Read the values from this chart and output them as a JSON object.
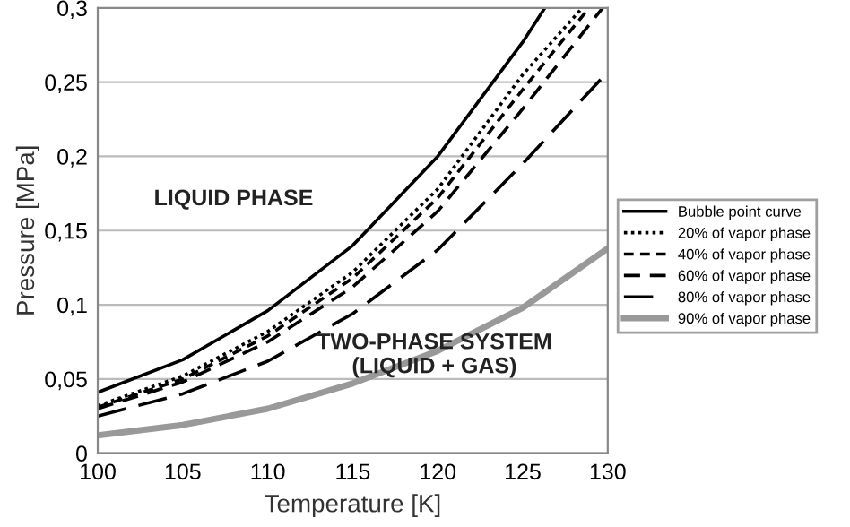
{
  "chart_data": {
    "type": "line",
    "xlabel": "Temperature [K]",
    "ylabel": "Pressure [MPa]",
    "xlim": [
      100,
      130
    ],
    "xticks": [
      100,
      105,
      110,
      115,
      120,
      125,
      130
    ],
    "ylim": [
      0,
      0.3
    ],
    "yticks": [
      0,
      {
        "value": 0.05,
        "label": "0,05"
      },
      {
        "value": 0.1,
        "label": "0,1"
      },
      {
        "value": 0.15,
        "label": "0,15"
      },
      {
        "value": 0.2,
        "label": "0,2"
      },
      {
        "value": 0.25,
        "label": "0,25"
      },
      {
        "value": 0.3,
        "label": "0,3"
      }
    ],
    "grid": "y",
    "legend": "right",
    "marker": "none",
    "annotations": [
      "LIQUID PHASE",
      "TWO-PHASE SYSTEM\n(LIQUID + GAS)"
    ],
    "series": [
      {
        "name": "Bubble point curve",
        "color": "#000000",
        "line_style": "solid",
        "x": [
          100,
          105,
          110,
          115,
          120,
          125,
          126.3
        ],
        "values": [
          0.041,
          0.063,
          0.096,
          0.14,
          0.2,
          0.277,
          0.3
        ]
      },
      {
        "name": "20% of vapor phase",
        "color": "#000000",
        "line_style": "dotted",
        "x": [
          100,
          105,
          110,
          115,
          120,
          125,
          128.5
        ],
        "values": [
          0.032,
          0.052,
          0.082,
          0.122,
          0.178,
          0.255,
          0.3
        ]
      },
      {
        "name": "40% of vapor phase",
        "color": "#000000",
        "line_style": "dashed",
        "x": [
          100,
          105,
          110,
          115,
          120,
          125,
          128.9
        ],
        "values": [
          0.031,
          0.05,
          0.079,
          0.118,
          0.172,
          0.245,
          0.3
        ]
      },
      {
        "name": "60% of vapor phase",
        "color": "#000000",
        "line_style": "dashed",
        "x": [
          100,
          105,
          110,
          115,
          120,
          125,
          129.7
        ],
        "values": [
          0.03,
          0.048,
          0.075,
          0.112,
          0.163,
          0.232,
          0.3
        ]
      },
      {
        "name": "80% of vapor phase",
        "color": "#000000",
        "line_style": "dashed",
        "x": [
          100,
          105,
          110,
          115,
          120,
          125,
          130
        ],
        "values": [
          0.025,
          0.04,
          0.062,
          0.094,
          0.137,
          0.195,
          0.257
        ]
      },
      {
        "name": "90% of vapor phase",
        "color": "#999999",
        "line_style": "solid",
        "x": [
          100,
          105,
          110,
          115,
          120,
          125,
          130
        ],
        "values": [
          0.012,
          0.019,
          0.03,
          0.047,
          0.069,
          0.098,
          0.138
        ]
      }
    ]
  }
}
